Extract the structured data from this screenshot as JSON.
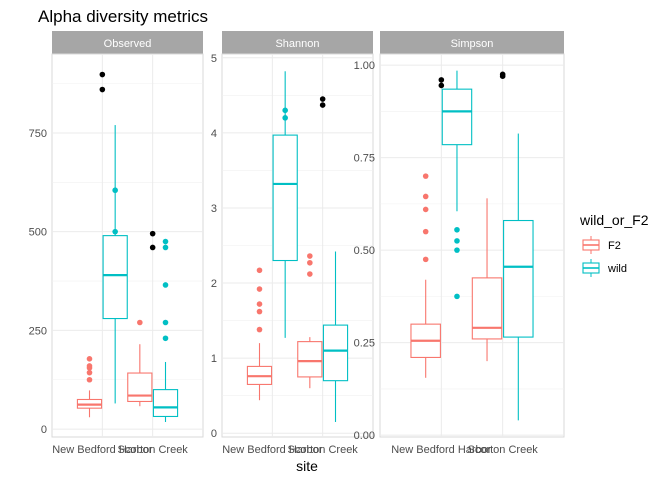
{
  "chart_data": {
    "type": "boxplot",
    "title": "Alpha diversity metrics",
    "xlabel": "site",
    "categories": [
      "New Bedford Harbor",
      "Scorton Creek"
    ],
    "legend": {
      "title": "wild_or_F2",
      "placement": "right",
      "entries": [
        {
          "name": "F2",
          "color": "#F8766D"
        },
        {
          "name": "wild",
          "color": "#00BFC4"
        }
      ]
    },
    "facets": [
      {
        "name": "Observed",
        "ylim": [
          -20,
          950
        ],
        "yticks": [
          0,
          250,
          500,
          750
        ],
        "ytick_labels": [
          "0",
          "250",
          "500",
          "750"
        ],
        "boxes": [
          {
            "category": "New Bedford Harbor",
            "group": "F2",
            "whisker_low": 30,
            "q1": 53,
            "median": 62,
            "q3": 75,
            "whisker_high": 98,
            "outliers": [
              125,
              143,
              155,
              160,
              178
            ]
          },
          {
            "category": "New Bedford Harbor",
            "group": "wild",
            "whisker_low": 65,
            "q1": 280,
            "median": 390,
            "q3": 490,
            "whisker_high": 770,
            "outliers": [
              500,
              605,
              860,
              898
            ]
          },
          {
            "category": "Scorton Creek",
            "group": "F2",
            "whisker_low": 58,
            "q1": 70,
            "median": 85,
            "q3": 142,
            "whisker_high": 215,
            "outliers": [
              270,
              460,
              495
            ]
          },
          {
            "category": "Scorton Creek",
            "group": "wild",
            "whisker_low": 18,
            "q1": 32,
            "median": 55,
            "q3": 100,
            "whisker_high": 170,
            "outliers": [
              230,
              270,
              365,
              460,
              475
            ]
          }
        ]
      },
      {
        "name": "Shannon",
        "ylim": [
          -0.05,
          5.05
        ],
        "yticks": [
          0,
          1,
          2,
          3,
          4,
          5
        ],
        "ytick_labels": [
          "0",
          "1",
          "2",
          "3",
          "4",
          "5"
        ],
        "boxes": [
          {
            "category": "New Bedford Harbor",
            "group": "F2",
            "whisker_low": 0.44,
            "q1": 0.65,
            "median": 0.76,
            "q3": 0.89,
            "whisker_high": 1.2,
            "outliers": [
              1.38,
              1.62,
              1.72,
              1.92,
              2.17
            ]
          },
          {
            "category": "New Bedford Harbor",
            "group": "wild",
            "whisker_low": 1.27,
            "q1": 2.3,
            "median": 3.32,
            "q3": 3.97,
            "whisker_high": 4.82,
            "outliers": [
              4.2,
              4.3
            ]
          },
          {
            "category": "Scorton Creek",
            "group": "F2",
            "whisker_low": 0.6,
            "q1": 0.75,
            "median": 0.96,
            "q3": 1.22,
            "whisker_high": 1.28,
            "outliers": [
              2.12,
              2.27,
              2.36,
              4.37,
              4.45
            ]
          },
          {
            "category": "Scorton Creek",
            "group": "wild",
            "whisker_low": 0.15,
            "q1": 0.7,
            "median": 1.1,
            "q3": 1.44,
            "whisker_high": 2.42,
            "outliers": []
          }
        ]
      },
      {
        "name": "Simpson",
        "ylim": [
          -0.005,
          1.03
        ],
        "yticks": [
          0,
          0.25,
          0.5,
          0.75,
          1
        ],
        "ytick_labels": [
          "0.00",
          "0.25",
          "0.50",
          "0.75",
          "1.00"
        ],
        "boxes": [
          {
            "category": "New Bedford Harbor",
            "group": "F2",
            "whisker_low": 0.155,
            "q1": 0.21,
            "median": 0.255,
            "q3": 0.3,
            "whisker_high": 0.42,
            "outliers": [
              0.475,
              0.55,
              0.61,
              0.645,
              0.7
            ]
          },
          {
            "category": "New Bedford Harbor",
            "group": "wild",
            "whisker_low": 0.605,
            "q1": 0.785,
            "median": 0.875,
            "q3": 0.935,
            "whisker_high": 0.985,
            "outliers": [
              0.375,
              0.5,
              0.525,
              0.555,
              0.945,
              0.96
            ]
          },
          {
            "category": "Scorton Creek",
            "group": "F2",
            "whisker_low": 0.2,
            "q1": 0.26,
            "median": 0.29,
            "q3": 0.425,
            "whisker_high": 0.64,
            "outliers": [
              0.97,
              0.975
            ]
          },
          {
            "category": "Scorton Creek",
            "group": "wild",
            "whisker_low": 0.04,
            "q1": 0.265,
            "median": 0.455,
            "q3": 0.58,
            "whisker_high": 0.815,
            "outliers": []
          }
        ]
      }
    ],
    "grid": true,
    "strip_color": "#A6A6A6",
    "outlier_color_overlap": "#000000"
  }
}
